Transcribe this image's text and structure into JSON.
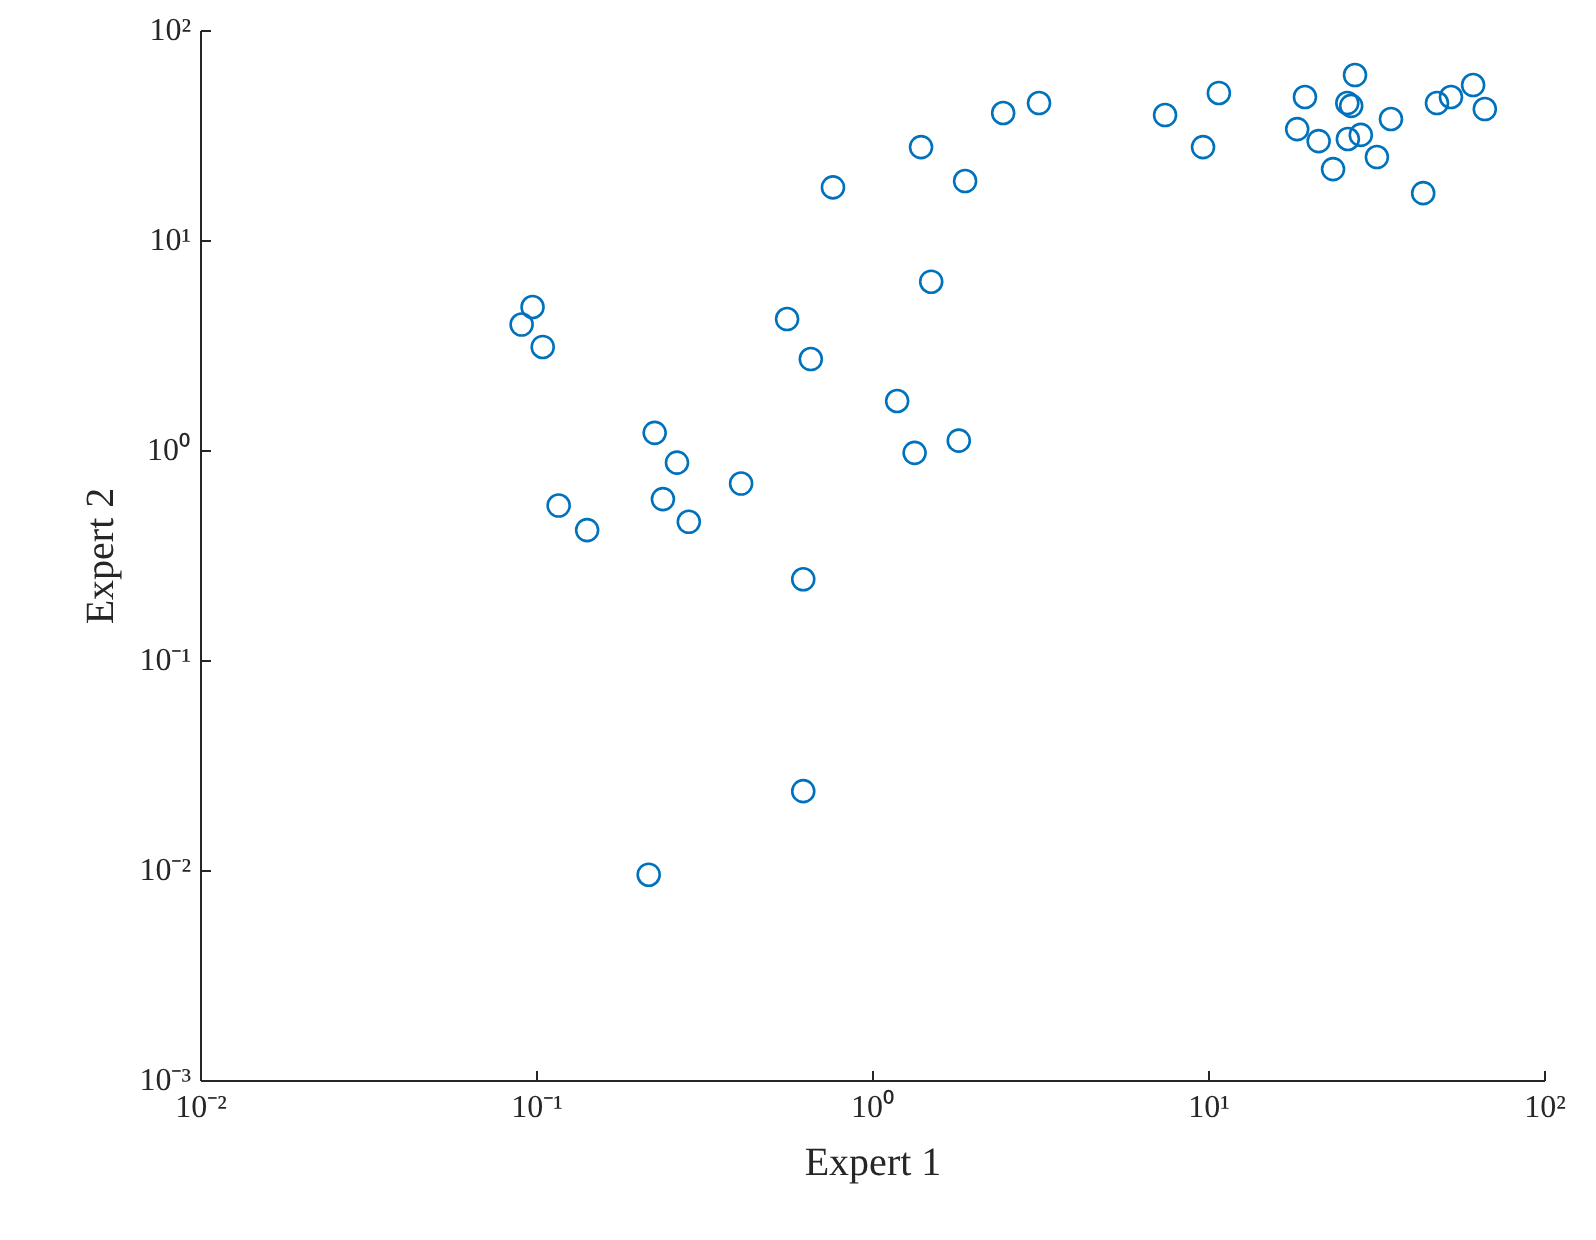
{
  "chart_data": {
    "type": "scatter",
    "xlabel": "Expert 1",
    "ylabel": "Expert 2",
    "log": "xy",
    "grid": false,
    "marker": "circle",
    "xlim": [
      0.01,
      100
    ],
    "ylim": [
      0.001,
      100
    ],
    "xticks": [
      {
        "value": 0.01,
        "label": "10⁻²"
      },
      {
        "value": 0.1,
        "label": "10⁻¹"
      },
      {
        "value": 1,
        "label": "10⁰"
      },
      {
        "value": 10,
        "label": "10¹"
      },
      {
        "value": 100,
        "label": "10²"
      }
    ],
    "yticks": [
      {
        "value": 0.001,
        "label": "10⁻³"
      },
      {
        "value": 0.01,
        "label": "10⁻²"
      },
      {
        "value": 0.1,
        "label": "10⁻¹"
      },
      {
        "value": 1,
        "label": "10⁰"
      },
      {
        "value": 10,
        "label": "10¹"
      },
      {
        "value": 100,
        "label": "10²"
      }
    ],
    "series": [
      {
        "color": "#0072bd",
        "x": [
          0.09,
          0.097,
          0.104,
          0.116,
          0.141,
          0.224,
          0.237,
          0.261,
          0.283,
          0.405,
          0.215,
          0.555,
          0.62,
          0.62,
          0.653,
          0.76,
          1.18,
          1.33,
          1.39,
          1.49,
          1.8,
          1.88,
          2.44,
          3.12,
          7.4,
          9.6,
          10.7,
          18.3,
          19.3,
          21.2,
          23.4,
          25.8,
          26.5,
          25.9,
          27.2,
          28.3,
          31.6,
          34.8,
          43.4,
          47.7,
          52.5,
          61.1,
          66.2
        ],
        "values": [
          4.0,
          4.85,
          3.13,
          0.55,
          0.42,
          1.22,
          0.59,
          0.88,
          0.46,
          0.7,
          0.0096,
          4.25,
          0.245,
          0.024,
          2.74,
          18,
          1.73,
          0.98,
          28,
          6.4,
          1.12,
          19.3,
          40.7,
          45.4,
          39.8,
          28,
          50.7,
          34.1,
          48.5,
          29.9,
          22,
          45.4,
          44,
          30.6,
          61.7,
          32,
          25.1,
          38.1,
          16.9,
          45.4,
          48.5,
          55.3,
          42.5
        ]
      }
    ]
  }
}
